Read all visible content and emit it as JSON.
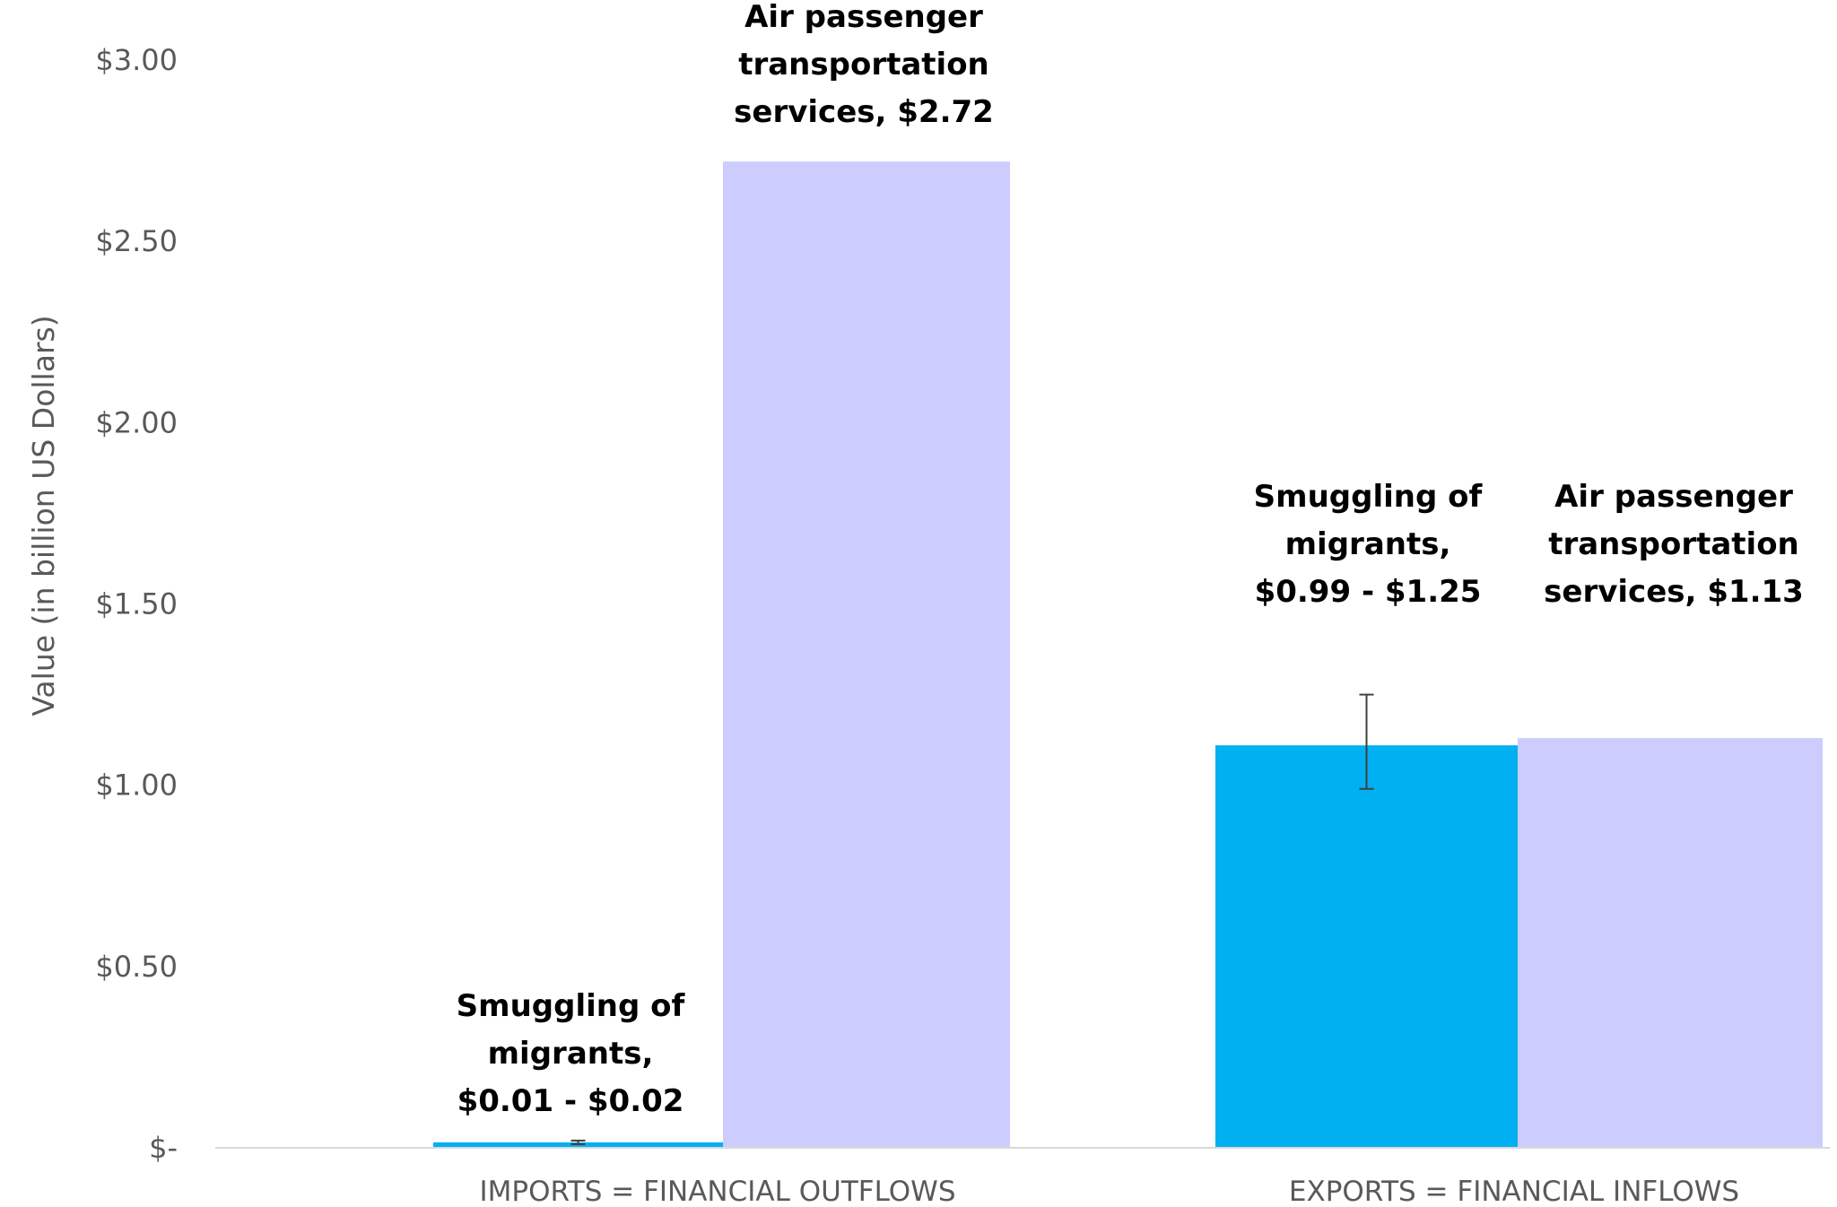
{
  "colors": {
    "smuggling": "#00b0f0",
    "air": "#ccccff",
    "axis": "#d9d9d9",
    "text": "#595959",
    "errorbar": "#404040"
  },
  "chart_data": {
    "type": "bar",
    "title": "",
    "xlabel": "",
    "ylabel": "Value (in billion US Dollars)",
    "ylim": [
      0,
      3
    ],
    "yticks": [
      {
        "value": 0,
        "label": "$-"
      },
      {
        "value": 0.5,
        "label": "$0.50"
      },
      {
        "value": 1.0,
        "label": "$1.00"
      },
      {
        "value": 1.5,
        "label": "$1.50"
      },
      {
        "value": 2.0,
        "label": "$2.00"
      },
      {
        "value": 2.5,
        "label": "$2.50"
      },
      {
        "value": 3.0,
        "label": "$3.00"
      }
    ],
    "categories": [
      "IMPORTS = FINANCIAL OUTFLOWS",
      "EXPORTS = FINANCIAL INFLOWS"
    ],
    "grid": false,
    "legend": "none",
    "series": [
      {
        "key": "smuggling",
        "values": [
          0.015,
          1.11
        ],
        "error_low": [
          0.01,
          0.99
        ],
        "error_high": [
          0.02,
          1.25
        ],
        "data_labels": [
          [
            "Smuggling of",
            "migrants,",
            "$0.01 - $0.02"
          ],
          [
            "Smuggling of",
            "migrants,",
            "$0.99 - $1.25"
          ]
        ]
      },
      {
        "key": "air",
        "values": [
          2.72,
          1.13
        ],
        "data_labels": [
          [
            "Air passenger",
            "transportation",
            "services,  $2.72"
          ],
          [
            "Air passenger",
            "transportation",
            "services, $1.13"
          ]
        ]
      }
    ]
  }
}
